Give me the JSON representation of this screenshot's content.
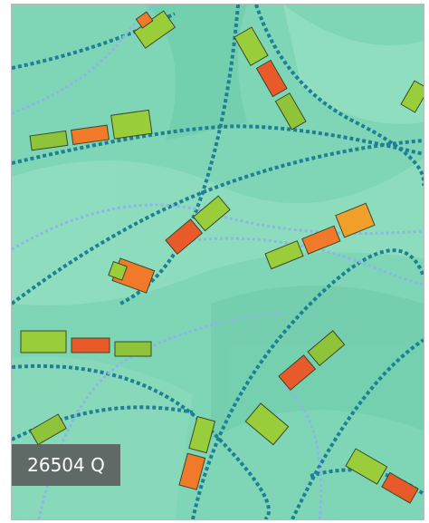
{
  "label": "26504 Q"
}
